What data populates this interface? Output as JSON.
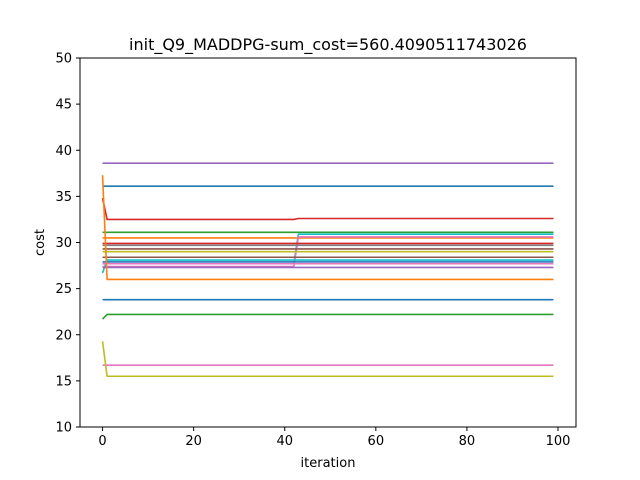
{
  "chart_data": {
    "type": "line",
    "title": "init_Q9_MADDPG-sum_cost=560.4090511743026",
    "xlabel": "iteration",
    "ylabel": "cost",
    "xlim": [
      -4.95,
      103.95
    ],
    "ylim": [
      10,
      50
    ],
    "xticks": [
      0,
      20,
      40,
      60,
      80,
      100
    ],
    "yticks": [
      10,
      15,
      20,
      25,
      30,
      35,
      40,
      45,
      50
    ],
    "grid": false,
    "legend": "none",
    "n_iterations": 100,
    "series": [
      {
        "color": "#9467bd",
        "points": [
          [
            0,
            38.6
          ],
          [
            99,
            38.6
          ]
        ]
      },
      {
        "color": "#1f77b4",
        "points": [
          [
            0,
            36.1
          ],
          [
            99,
            36.1
          ]
        ]
      },
      {
        "color": "#d62728",
        "points": [
          [
            0,
            34.8
          ],
          [
            1,
            32.5
          ],
          [
            42,
            32.5
          ],
          [
            43,
            32.6
          ],
          [
            99,
            32.6
          ]
        ]
      },
      {
        "color": "#2ca02c",
        "points": [
          [
            0,
            31.1
          ],
          [
            99,
            31.1
          ]
        ]
      },
      {
        "color": "#17becf",
        "points": [
          [
            0,
            27.7
          ],
          [
            42,
            27.7
          ],
          [
            43,
            30.9
          ],
          [
            99,
            30.9
          ]
        ]
      },
      {
        "color": "#ff7f0e",
        "points": [
          [
            0,
            30.5
          ],
          [
            99,
            30.5
          ]
        ]
      },
      {
        "color": "#e377c2",
        "points": [
          [
            0,
            27.4
          ],
          [
            42,
            27.4
          ],
          [
            43,
            30.6
          ],
          [
            99,
            30.6
          ]
        ]
      },
      {
        "color": "#d62728",
        "points": [
          [
            0,
            29.9
          ],
          [
            99,
            29.9
          ]
        ]
      },
      {
        "color": "#7f7f7f",
        "points": [
          [
            0,
            29.7
          ],
          [
            99,
            29.7
          ]
        ]
      },
      {
        "color": "#8c564b",
        "points": [
          [
            0,
            29.3
          ],
          [
            99,
            29.3
          ]
        ]
      },
      {
        "color": "#bcbd22",
        "points": [
          [
            0,
            29.0
          ],
          [
            99,
            29.0
          ]
        ]
      },
      {
        "color": "#8c564b",
        "points": [
          [
            0,
            28.4
          ],
          [
            99,
            28.4
          ]
        ]
      },
      {
        "color": "#17becf",
        "points": [
          [
            0,
            26.7
          ],
          [
            1,
            28.1
          ],
          [
            99,
            28.1
          ]
        ]
      },
      {
        "color": "#1f77b4",
        "points": [
          [
            0,
            27.9
          ],
          [
            99,
            27.9
          ]
        ]
      },
      {
        "color": "#e377c2",
        "points": [
          [
            0,
            27.7
          ],
          [
            99,
            27.7
          ]
        ]
      },
      {
        "color": "#9467bd",
        "points": [
          [
            0,
            27.3
          ],
          [
            99,
            27.3
          ]
        ]
      },
      {
        "color": "#ff7f0e",
        "points": [
          [
            0,
            37.3
          ],
          [
            1,
            26.0
          ],
          [
            99,
            26.0
          ]
        ]
      },
      {
        "color": "#1f77b4",
        "points": [
          [
            0,
            23.8
          ],
          [
            99,
            23.8
          ]
        ]
      },
      {
        "color": "#2ca02c",
        "points": [
          [
            0,
            21.7
          ],
          [
            1,
            22.2
          ],
          [
            99,
            22.2
          ]
        ]
      },
      {
        "color": "#e377c2",
        "points": [
          [
            0,
            16.7
          ],
          [
            99,
            16.7
          ]
        ]
      },
      {
        "color": "#bcbd22",
        "points": [
          [
            0,
            19.3
          ],
          [
            1,
            15.5
          ],
          [
            99,
            15.5
          ]
        ]
      }
    ]
  }
}
